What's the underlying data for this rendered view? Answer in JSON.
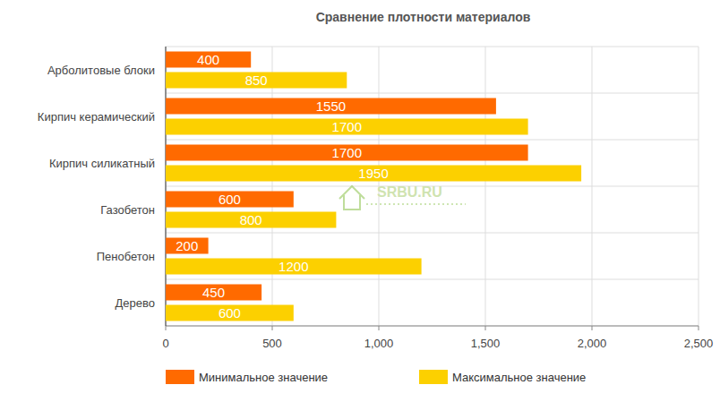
{
  "chart_data": {
    "type": "bar",
    "orientation": "horizontal",
    "title": "Сравнение плотности материалов",
    "categories": [
      "Арболитовые блоки",
      "Кирпич керамический",
      "Кирпич силикатный",
      "Газобетон",
      "Пенобетон",
      "Дерево"
    ],
    "series": [
      {
        "name": "Минимальное значение",
        "color": "#ff6a00",
        "values": [
          400,
          1550,
          1700,
          600,
          200,
          450
        ]
      },
      {
        "name": "Максимальное значение",
        "color": "#fcd000",
        "values": [
          850,
          1700,
          1950,
          800,
          1200,
          600
        ]
      }
    ],
    "xlim": [
      0,
      2500
    ],
    "xticks": [
      0,
      500,
      {
        "value": 1000,
        "label": "1,000"
      },
      {
        "value": 1500,
        "label": "1,500"
      },
      {
        "value": 2000,
        "label": "2,000"
      },
      {
        "value": 2500,
        "label": "2,500"
      }
    ],
    "grid": true,
    "legend": "bottom",
    "data_labels": true,
    "annotations": [
      "SRBU.RU"
    ]
  }
}
